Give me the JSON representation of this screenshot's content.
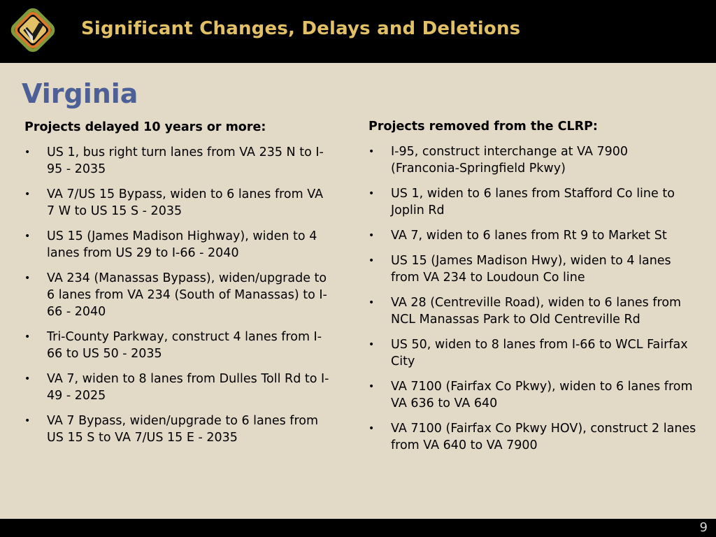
{
  "header": {
    "title": "Significant Changes, Delays and Deletions",
    "colors": {
      "background": "#000000",
      "title": "#e2c166",
      "logo_gold": "#e2c166",
      "logo_orange": "#d9782b",
      "logo_green": "#7e9a3c"
    }
  },
  "slide": {
    "heading": "Virginia",
    "heading_color": "#4c5f97",
    "background_color": "#e2d9c7"
  },
  "left_column": {
    "heading": "Projects delayed 10 years or more:",
    "items": [
      "US 1, bus right turn lanes from VA 235 N to I-95 - 2035",
      "VA 7/US 15 Bypass, widen to 6 lanes from VA 7 W to US 15 S - 2035",
      "US 15 (James Madison Highway), widen to 4 lanes from US 29 to I-66 - 2040",
      "VA 234 (Manassas Bypass), widen/upgrade to 6 lanes from VA 234 (South of Manassas) to I-66 - 2040",
      "Tri-County Parkway, construct 4 lanes from I-66 to US 50 - 2035",
      "VA 7, widen to 8 lanes from Dulles Toll Rd to I-49 - 2025",
      "VA 7 Bypass, widen/upgrade to 6 lanes from US 15 S to VA 7/US 15 E - 2035"
    ]
  },
  "right_column": {
    "heading": "Projects removed from the CLRP:",
    "items": [
      "I-95, construct interchange at VA 7900 (Franconia-Springfield Pkwy)",
      "US 1, widen to 6 lanes from Stafford Co line to Joplin Rd",
      "VA 7, widen to 6 lanes from Rt 9 to Market St",
      "US 15 (James Madison Hwy), widen to 4 lanes from VA 234 to Loudoun Co line",
      "VA 28 (Centreville Road), widen to 6 lanes from NCL Manassas Park to Old Centreville Rd",
      "US 50, widen to 8 lanes from I-66 to WCL Fairfax City",
      "VA 7100 (Fairfax Co Pkwy), widen to 6 lanes from VA 636 to VA 640",
      "VA 7100 (Fairfax Co Pkwy HOV), construct 2 lanes from VA 640 to VA 7900"
    ]
  },
  "footer": {
    "page_number": "9"
  },
  "bullet_char": "•"
}
